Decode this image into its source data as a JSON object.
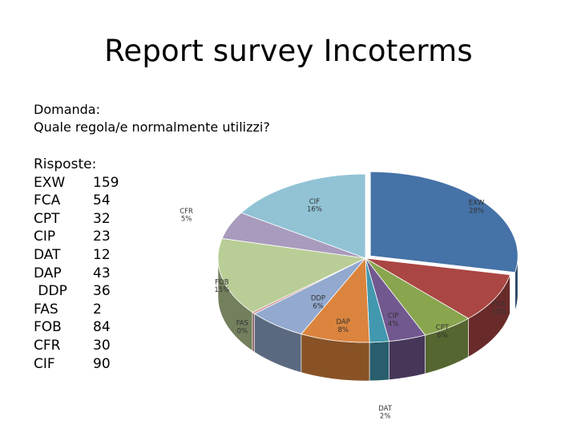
{
  "slide": {
    "title": "Report survey Incoterms",
    "question_heading": "Domanda:",
    "question_text": "Quale regola/e normalmente utilizzi?",
    "answers_heading": "Risposte:"
  },
  "answers": [
    {
      "label": "EXW",
      "value": "159"
    },
    {
      "label": "FCA",
      "value": "54"
    },
    {
      "label": "CPT",
      "value": "32"
    },
    {
      "label": "CIP",
      "value": "23"
    },
    {
      "label": "DAT",
      "value": "12"
    },
    {
      "label": "DAP",
      "value": "43"
    },
    {
      "label": " DDP",
      "value": "36"
    },
    {
      "label": "FAS",
      "value": "2"
    },
    {
      "label": "FOB",
      "value": "84"
    },
    {
      "label": "CFR",
      "value": "30"
    },
    {
      "label": "CIF",
      "value": "90"
    }
  ],
  "chart_data": {
    "type": "pie",
    "style": "3d",
    "categories": [
      "EXW",
      "FCA",
      "CPT",
      "CIP",
      "DAT",
      "DAP",
      "DDP",
      "FAS",
      "FOB",
      "CFR",
      "CIF"
    ],
    "values": [
      159,
      54,
      32,
      23,
      12,
      43,
      36,
      2,
      84,
      30,
      90
    ],
    "data_labels": [
      "28%",
      "10%",
      "6%",
      "4%",
      "2%",
      "8%",
      "6%",
      "0%",
      "15%",
      "5%",
      "16%"
    ],
    "colors": [
      "#4572A7",
      "#AA4643",
      "#89A54E",
      "#71588F",
      "#4198AF",
      "#DB843D",
      "#93A9CF",
      "#D19392",
      "#B9CD96",
      "#A99BBD",
      "#91C3D5"
    ]
  }
}
